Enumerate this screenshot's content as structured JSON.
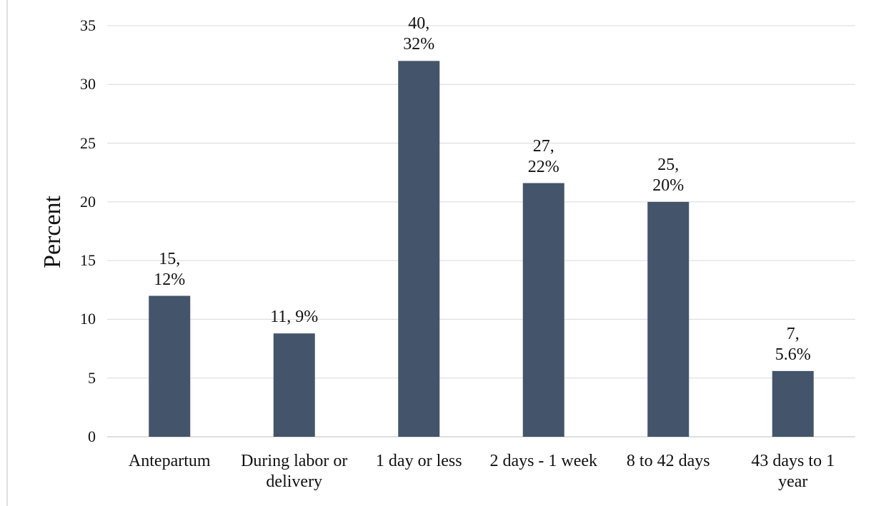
{
  "chart_data": {
    "type": "bar",
    "y_label": "Percent",
    "categories": [
      "Antepartum",
      "During labor or delivery",
      "1 day or less",
      "2 days - 1 week",
      "8 to 42 days",
      "43 days to 1 year"
    ],
    "values": [
      12,
      8.8,
      32,
      21.6,
      20,
      5.6
    ],
    "value_labels": [
      "15, 12%",
      "11, 9%",
      "40, 32%",
      "27, 22%",
      "25, 20%",
      "7, 5.6%"
    ],
    "color": "#44546a",
    "ylim": [
      0,
      35
    ],
    "yticks": [
      0,
      5,
      10,
      15,
      20,
      25,
      30,
      35
    ],
    "grid": true
  }
}
